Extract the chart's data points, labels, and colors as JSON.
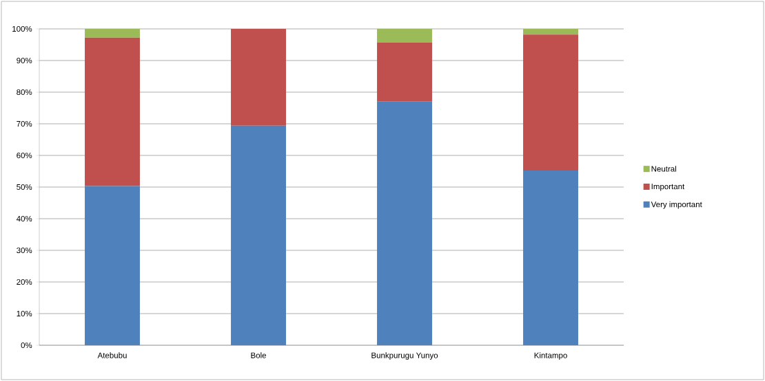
{
  "chart_data": {
    "type": "bar",
    "stacked": true,
    "categories": [
      "Atebubu",
      "Bole",
      "Bunkpurugu Yunyo",
      "Kintampo"
    ],
    "series": [
      {
        "name": "Very important",
        "color": "#4f81bd",
        "values": [
          50.3,
          69.4,
          77.0,
          55.2
        ]
      },
      {
        "name": "Important",
        "color": "#c0504d",
        "values": [
          46.9,
          30.6,
          18.7,
          43.0
        ]
      },
      {
        "name": "Neutral",
        "color": "#9bbb59",
        "values": [
          2.8,
          0,
          4.3,
          1.8
        ]
      }
    ],
    "ylim": [
      0,
      100
    ],
    "yticks": [
      {
        "value": 0,
        "label": "0%"
      },
      {
        "value": 10,
        "label": "10%"
      },
      {
        "value": 20,
        "label": "20%"
      },
      {
        "value": 30,
        "label": "30%"
      },
      {
        "value": 40,
        "label": "40%"
      },
      {
        "value": 50,
        "label": "50%"
      },
      {
        "value": 60,
        "label": "60%"
      },
      {
        "value": 70,
        "label": "70%"
      },
      {
        "value": 80,
        "label": "80%"
      },
      {
        "value": 90,
        "label": "90%"
      },
      {
        "value": 100,
        "label": "100%"
      }
    ],
    "grid": "y",
    "legend": "right"
  }
}
